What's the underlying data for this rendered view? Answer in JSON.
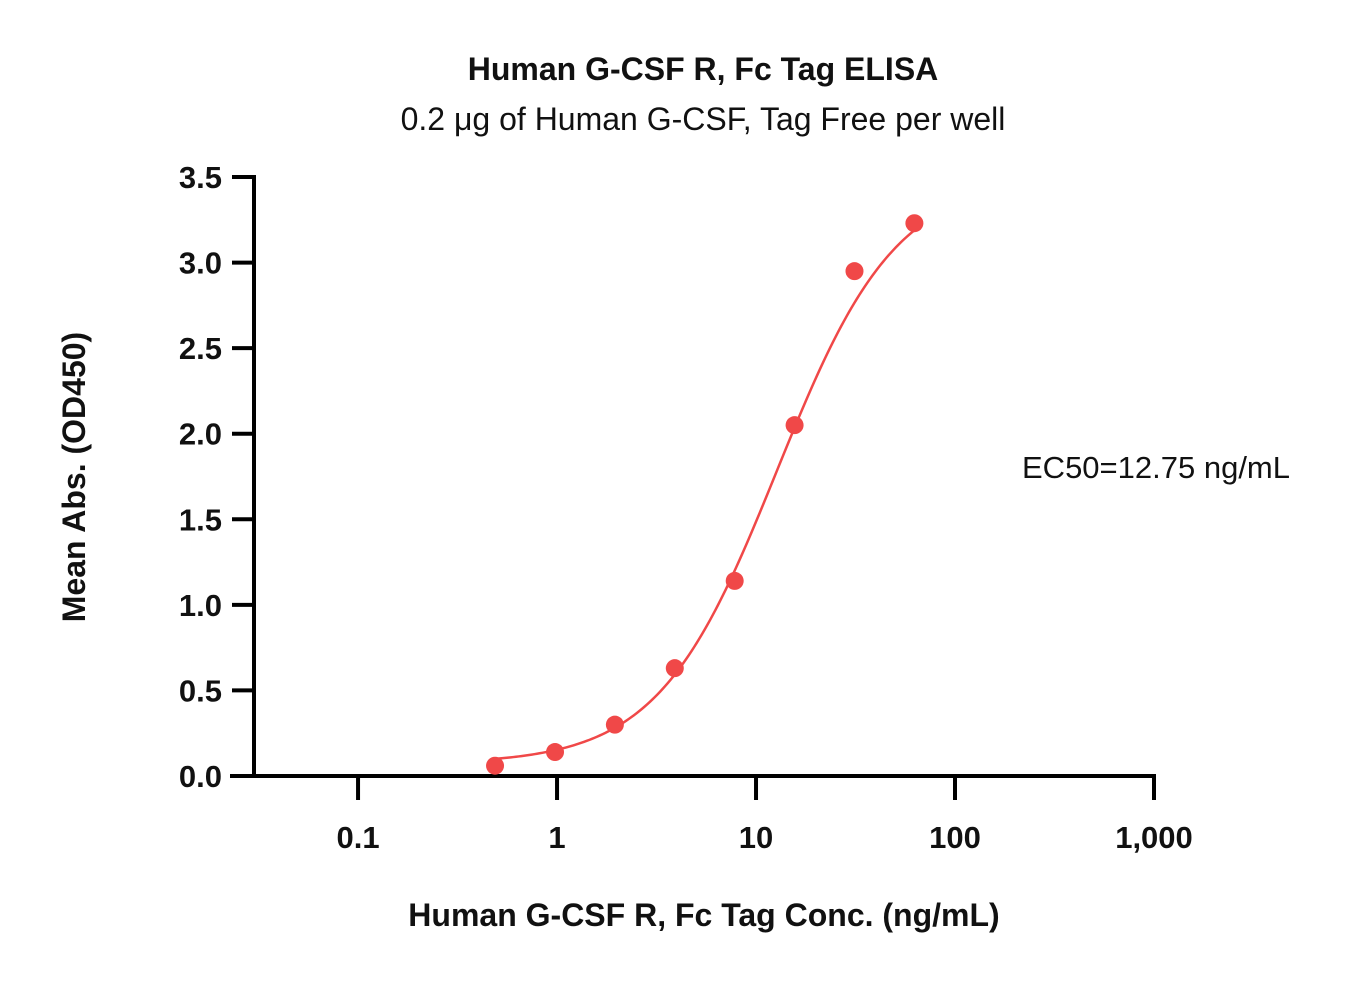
{
  "chart_data": {
    "type": "scatter",
    "title": "Human G-CSF R, Fc Tag ELISA",
    "subtitle": "0.2 μg of Human G-CSF, Tag Free per well",
    "xlabel": "Human G-CSF R, Fc Tag Conc. (ng/mL)",
    "ylabel": "Mean Abs. (OD450)",
    "x_scale": "log",
    "xlim": [
      0.03,
      1000
    ],
    "ylim": [
      0,
      3.5
    ],
    "x_ticks": [
      0.1,
      1,
      10,
      100,
      1000
    ],
    "x_tick_labels": [
      "0.1",
      "1",
      "10",
      "100",
      "1,000"
    ],
    "y_ticks": [
      0,
      0.5,
      1.0,
      1.5,
      2.0,
      2.5,
      3.0,
      3.5
    ],
    "y_tick_labels": [
      "0.0",
      "0.5",
      "1.0",
      "1.5",
      "2.0",
      "2.5",
      "3.0",
      "3.5"
    ],
    "grid": false,
    "legend": "none",
    "series": [
      {
        "color": "#f04848",
        "x": [
          0.488,
          0.977,
          1.953,
          3.906,
          7.813,
          15.625,
          31.25,
          62.5
        ],
        "y": [
          0.06,
          0.14,
          0.3,
          0.63,
          1.14,
          2.05,
          2.95,
          3.23
        ]
      }
    ],
    "fit_curve": {
      "model": "4PL",
      "bottom": 0.07,
      "top": 3.5,
      "ec50": 12.75,
      "hill": 1.45,
      "x_range": [
        0.488,
        62.5
      ],
      "color": "#f04848"
    },
    "annotation": "EC50=12.75 ng/mL"
  }
}
